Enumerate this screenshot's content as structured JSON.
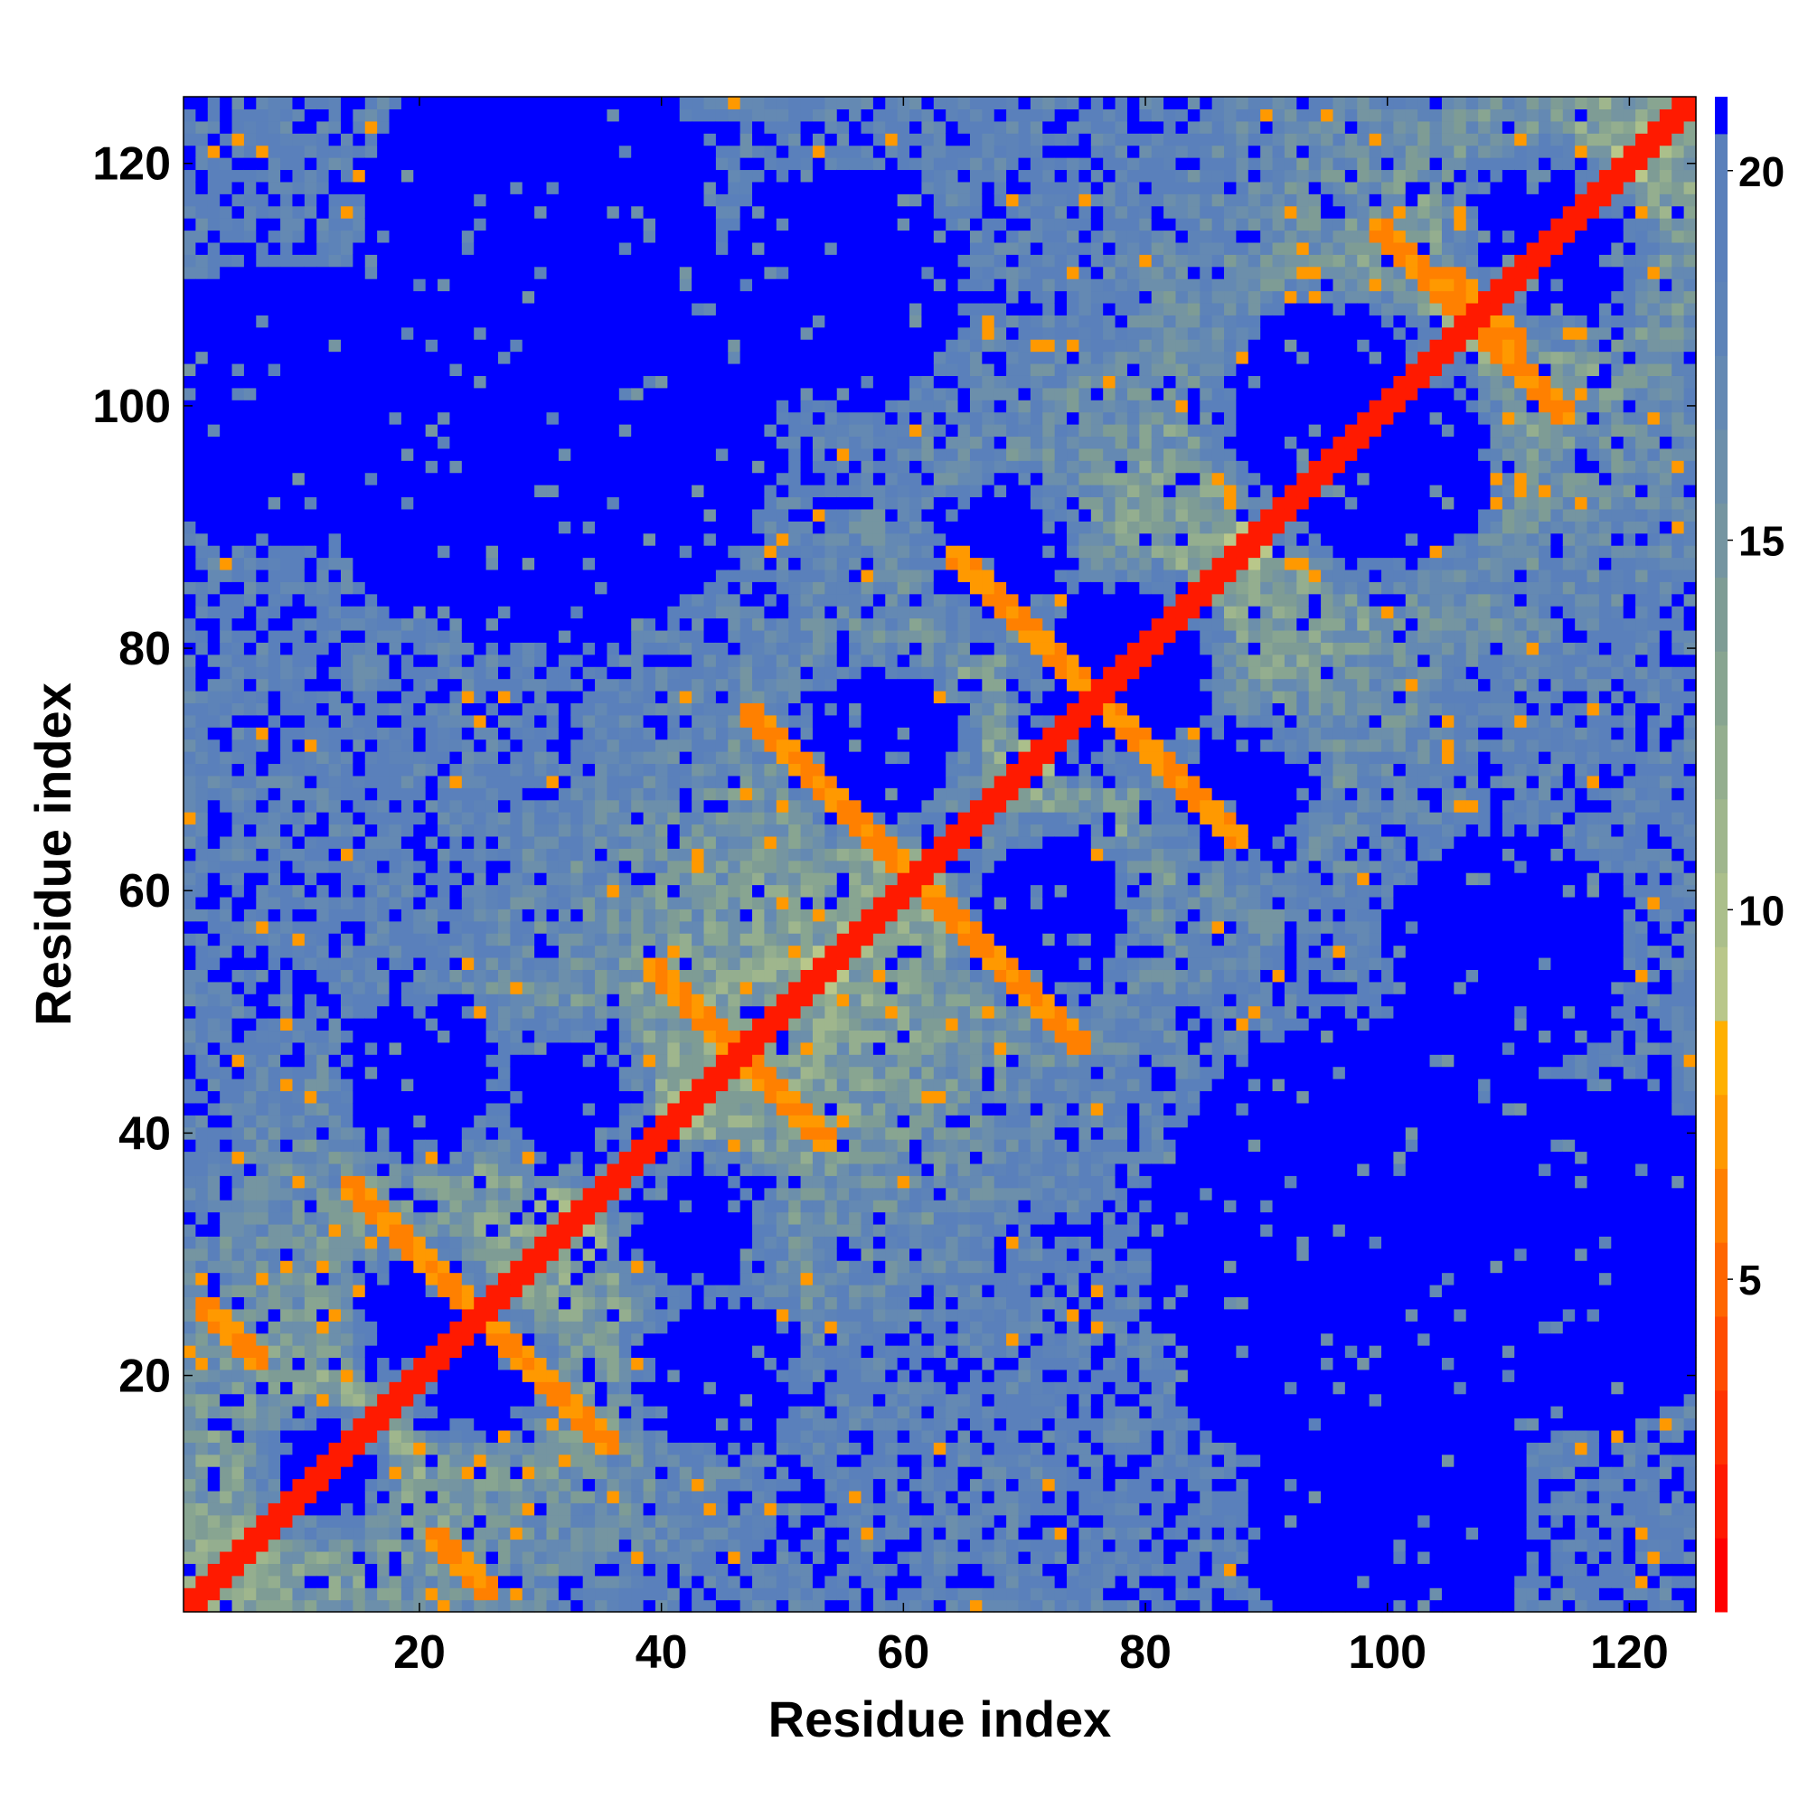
{
  "chart_data": {
    "type": "heatmap",
    "title": "",
    "xlabel": "Residue index",
    "ylabel": "Residue index",
    "xlim": [
      1,
      125
    ],
    "ylim": [
      1,
      125
    ],
    "x_ticks": [
      20,
      40,
      60,
      80,
      100,
      120
    ],
    "y_ticks": [
      20,
      40,
      60,
      80,
      100,
      120
    ],
    "colorbar": {
      "range": [
        0.5,
        21.0
      ],
      "ticks": [
        5,
        10,
        15,
        20
      ],
      "tick_labels": [
        "5",
        "10",
        "15",
        "20"
      ],
      "levels": [
        {
          "from": 0.5,
          "to": 1.5,
          "color": "#ff0000"
        },
        {
          "from": 1.5,
          "to": 2.5,
          "color": "#ff1a00"
        },
        {
          "from": 2.5,
          "to": 3.5,
          "color": "#ff3300"
        },
        {
          "from": 3.5,
          "to": 4.5,
          "color": "#ff4d00"
        },
        {
          "from": 4.5,
          "to": 5.5,
          "color": "#ff6600"
        },
        {
          "from": 5.5,
          "to": 6.5,
          "color": "#ff8000"
        },
        {
          "from": 6.5,
          "to": 7.5,
          "color": "#ff9900"
        },
        {
          "from": 7.5,
          "to": 8.5,
          "color": "#ffb000"
        },
        {
          "from": 8.5,
          "to": 9.5,
          "color": "#b9c78a"
        },
        {
          "from": 9.5,
          "to": 10.5,
          "color": "#abbf8b"
        },
        {
          "from": 10.5,
          "to": 11.5,
          "color": "#9fb68d"
        },
        {
          "from": 11.5,
          "to": 12.5,
          "color": "#94ae8f"
        },
        {
          "from": 12.5,
          "to": 13.5,
          "color": "#88a591"
        },
        {
          "from": 13.5,
          "to": 14.5,
          "color": "#7e9c95"
        },
        {
          "from": 14.5,
          "to": 15.5,
          "color": "#7595a1"
        },
        {
          "from": 15.5,
          "to": 16.5,
          "color": "#6c8fab"
        },
        {
          "from": 16.5,
          "to": 17.5,
          "color": "#6489b3"
        },
        {
          "from": 17.5,
          "to": 18.5,
          "color": "#5d83b8"
        },
        {
          "from": 18.5,
          "to": 19.5,
          "color": "#5a80bb"
        },
        {
          "from": 19.5,
          "to": 20.5,
          "color": "#5a80bb"
        },
        {
          "from": 20.5,
          "to": 21.0,
          "color": "#0000ff"
        }
      ]
    },
    "values_description": "Residue-residue distance contact map; red on diagonal (0-5), orange contact bands (5-8), green/steel-blue intermediate (9-20), blue beyond cutoff (>20).",
    "features": {
      "diagonal": {
        "from": 1,
        "to": 125,
        "half_width": 1.3,
        "value": 2
      },
      "antiparallel_bands": [
        {
          "a": [
            2,
            26
          ],
          "b": [
            7,
            21
          ],
          "value": 6
        },
        {
          "a": [
            14,
            36
          ],
          "b": [
            26,
            24
          ],
          "value": 6
        },
        {
          "a": [
            39,
            54
          ],
          "b": [
            53,
            40
          ],
          "value": 6
        },
        {
          "a": [
            47,
            75
          ],
          "b": [
            58,
            64
          ],
          "value": 6
        },
        {
          "a": [
            57,
            65
          ],
          "b": [
            73,
            49
          ],
          "value": 6
        },
        {
          "a": [
            64,
            88
          ],
          "b": [
            78,
            74
          ],
          "value": 6
        },
        {
          "a": [
            99,
            115
          ],
          "b": [
            109,
            105
          ],
          "value": 6
        },
        {
          "a": [
            105,
            111
          ],
          "b": [
            117,
            99
          ],
          "value": 6
        }
      ],
      "far_regions": [
        {
          "center": [
            12,
            12
          ],
          "radius": 3.2
        },
        {
          "center": [
            25,
            20
          ],
          "radius": 4
        },
        {
          "center": [
            20,
            25
          ],
          "radius": 4
        },
        {
          "center": [
            45,
            20
          ],
          "radius": 6
        },
        {
          "center": [
            20,
            45
          ],
          "radius": 6
        },
        {
          "center": [
            43,
            32
          ],
          "radius": 5
        },
        {
          "center": [
            32,
            43
          ],
          "radius": 5
        },
        {
          "center": [
            58,
            72
          ],
          "radius": 6
        },
        {
          "center": [
            72,
            58
          ],
          "radius": 6
        },
        {
          "center": [
            78,
            78
          ],
          "radius": 7
        },
        {
          "center": [
            68,
            88
          ],
          "radius": 5
        },
        {
          "center": [
            88,
            68
          ],
          "radius": 5
        },
        {
          "center": [
            95,
            100
          ],
          "radius": 8
        },
        {
          "center": [
            100,
            95
          ],
          "radius": 8
        },
        {
          "center": [
            115,
            112
          ],
          "radius": 5
        },
        {
          "center": [
            112,
            115
          ],
          "radius": 5
        },
        {
          "center": [
            30,
            100
          ],
          "radius": 20
        },
        {
          "center": [
            100,
            30
          ],
          "radius": 20
        },
        {
          "center": [
            55,
            110
          ],
          "radius": 10
        },
        {
          "center": [
            110,
            55
          ],
          "radius": 10
        },
        {
          "center": [
            8,
            100
          ],
          "radius": 12
        },
        {
          "center": [
            100,
            8
          ],
          "radius": 12
        },
        {
          "center": [
            115,
            30
          ],
          "radius": 15
        },
        {
          "center": [
            30,
            115
          ],
          "radius": 15
        }
      ]
    }
  }
}
